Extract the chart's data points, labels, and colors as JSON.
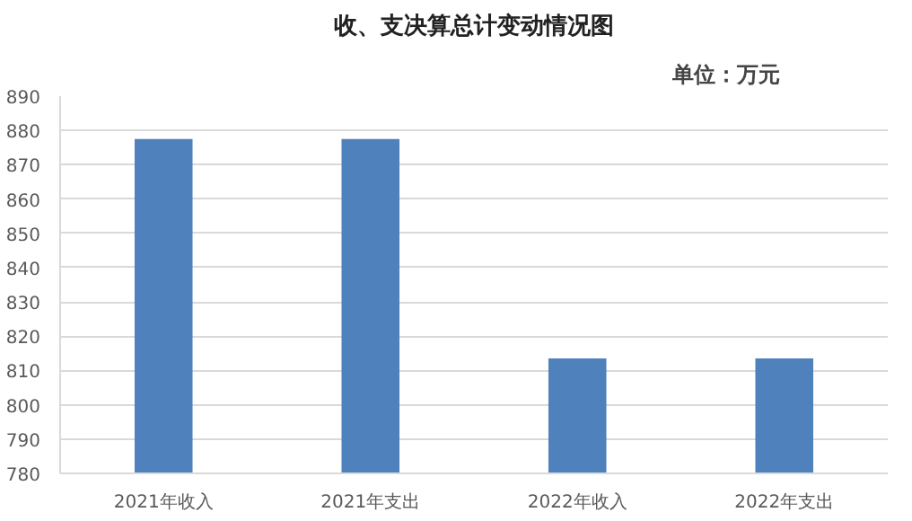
{
  "chart_data": {
    "type": "bar",
    "title": "收、支决算总计变动情况图",
    "subtitle": "单位：万元",
    "categories": [
      "2021年收入",
      "2021年支出",
      "2022年收入",
      "2022年支出"
    ],
    "values": [
      877.5,
      877.5,
      813.5,
      813.5
    ],
    "color": "#4f81bd",
    "ylim": [
      780,
      890
    ],
    "yticks": [
      780,
      790,
      800,
      810,
      820,
      830,
      840,
      850,
      860,
      870,
      880,
      890
    ],
    "grid": "y"
  }
}
